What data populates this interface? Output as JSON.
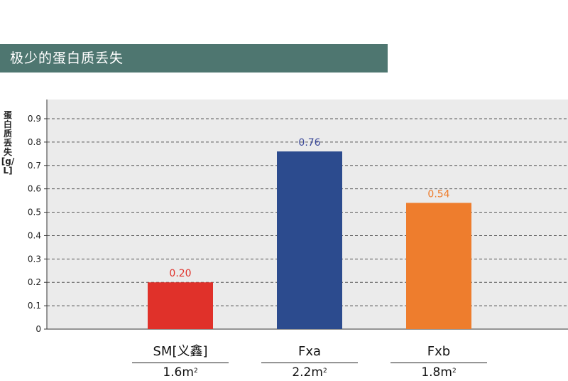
{
  "header": {
    "title": "极少的蛋白质丢失"
  },
  "chart_data": {
    "type": "bar",
    "ylabel": "蛋白质丢失[g/L]",
    "ylim": [
      0,
      0.9
    ],
    "yticks": [
      "0",
      "0.1",
      "0.2",
      "0.3",
      "0.4",
      "0.5",
      "0.6",
      "0.7",
      "0.8",
      "0.9"
    ],
    "grid": true,
    "categories": [
      "SM[义鑫]",
      "Fxa",
      "Fxb"
    ],
    "values": [
      0.2,
      0.76,
      0.54
    ],
    "value_labels": [
      "0.20",
      "0.76",
      "0.54"
    ],
    "colors": [
      "#e0312a",
      "#2c4b8e",
      "#ee7d2d"
    ],
    "label_colors": [
      "#e0312a",
      "#3c4a9a",
      "#ee7d2d"
    ],
    "sublabels": [
      "1.6m",
      "2.2m",
      "1.8m"
    ],
    "sublabel_unit_superscript": "2"
  }
}
